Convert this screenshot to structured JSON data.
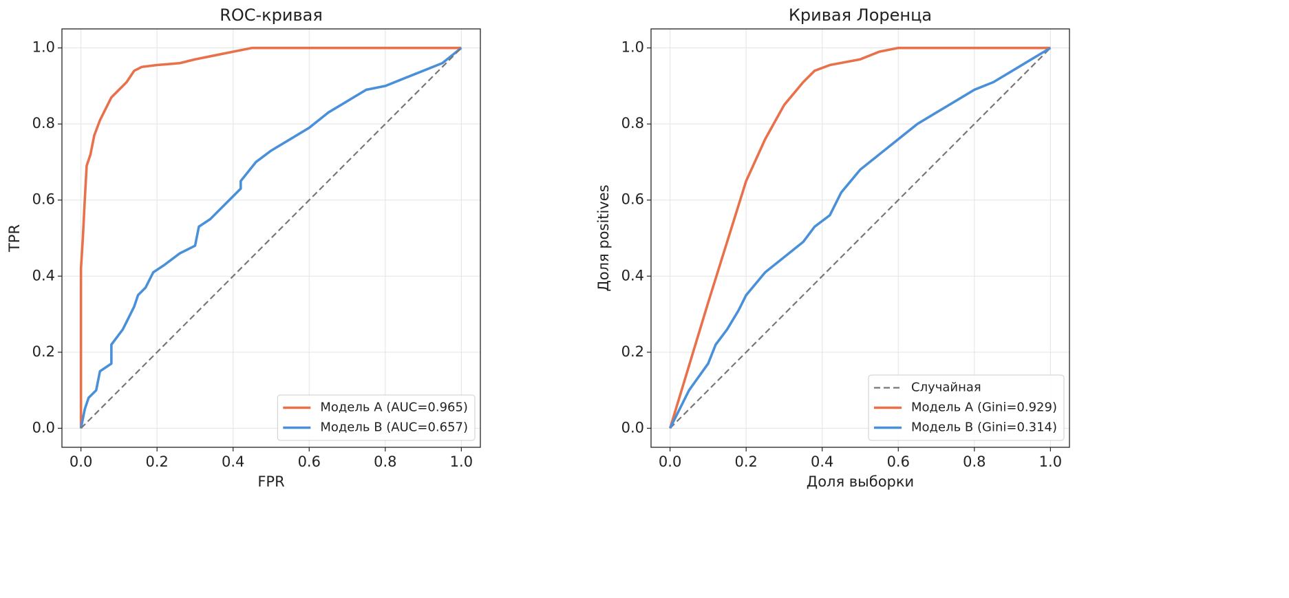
{
  "chart_data": [
    {
      "type": "line",
      "title": "ROC-кривая",
      "xlabel": "FPR",
      "ylabel": "TPR",
      "xlim": [
        -0.05,
        1.05
      ],
      "ylim": [
        -0.05,
        1.05
      ],
      "xticks": [
        {
          "value": 0,
          "label": "0.0"
        },
        0.2,
        0.4,
        0.6,
        0.8,
        {
          "value": 1,
          "label": "1.0"
        }
      ],
      "yticks": [
        {
          "value": 0,
          "label": "0.0"
        },
        0.2,
        0.4,
        0.6,
        0.8,
        {
          "value": 1,
          "label": "1.0"
        }
      ],
      "grid": true,
      "legend": "lower right",
      "series": [
        {
          "name": "Модель A (AUC=0.965)",
          "color": "#e8704a",
          "x": [
            0,
            0,
            0.005,
            0.01,
            0.015,
            0.025,
            0.035,
            0.05,
            0.06,
            0.08,
            0.1,
            0.12,
            0.14,
            0.16,
            0.2,
            0.26,
            0.3,
            0.35,
            0.4,
            0.45,
            1
          ],
          "values": [
            0,
            0.42,
            0.5,
            0.6,
            0.69,
            0.72,
            0.77,
            0.81,
            0.83,
            0.87,
            0.89,
            0.91,
            0.94,
            0.95,
            0.955,
            0.96,
            0.97,
            0.98,
            0.99,
            1,
            1
          ]
        },
        {
          "name": "Модель B (AUC=0.657)",
          "color": "#4a90d9",
          "x": [
            0,
            0.01,
            0.02,
            0.04,
            0.05,
            0.08,
            0.08,
            0.11,
            0.14,
            0.15,
            0.17,
            0.19,
            0.22,
            0.26,
            0.3,
            0.31,
            0.34,
            0.37,
            0.4,
            0.42,
            0.42,
            0.46,
            0.5,
            0.55,
            0.6,
            0.65,
            0.7,
            0.75,
            0.8,
            0.85,
            0.9,
            0.95,
            1
          ],
          "values": [
            0,
            0.05,
            0.08,
            0.1,
            0.15,
            0.17,
            0.22,
            0.26,
            0.32,
            0.35,
            0.37,
            0.41,
            0.43,
            0.46,
            0.48,
            0.53,
            0.55,
            0.58,
            0.61,
            0.63,
            0.65,
            0.7,
            0.73,
            0.76,
            0.79,
            0.83,
            0.86,
            0.89,
            0.9,
            0.92,
            0.94,
            0.96,
            1
          ]
        },
        {
          "color": "#777777",
          "dashed": true,
          "x": [
            0,
            1
          ],
          "values": [
            0,
            1
          ]
        }
      ]
    },
    {
      "type": "line",
      "title": "Кривая Лоренца",
      "xlabel": "Доля выборки",
      "ylabel": "Доля positives",
      "xlim": [
        -0.05,
        1.05
      ],
      "ylim": [
        -0.05,
        1.05
      ],
      "xticks": [
        {
          "value": 0,
          "label": "0.0"
        },
        0.2,
        0.4,
        0.6,
        0.8,
        {
          "value": 1,
          "label": "1.0"
        }
      ],
      "yticks": [
        {
          "value": 0,
          "label": "0.0"
        },
        0.2,
        0.4,
        0.6,
        0.8,
        {
          "value": 1,
          "label": "1.0"
        }
      ],
      "grid": true,
      "legend": "lower right",
      "series": [
        {
          "name": "Случайная",
          "color": "#777777",
          "dashed": true,
          "x": [
            0,
            1
          ],
          "values": [
            0,
            1
          ]
        },
        {
          "name": "Модель A (Gini=0.929)",
          "color": "#e8704a",
          "x": [
            0,
            0.1,
            0.2,
            0.25,
            0.3,
            0.35,
            0.38,
            0.42,
            0.5,
            0.55,
            0.6,
            1
          ],
          "values": [
            0,
            0.33,
            0.65,
            0.76,
            0.85,
            0.91,
            0.94,
            0.955,
            0.97,
            0.99,
            1,
            1
          ]
        },
        {
          "name": "Модель B (Gini=0.314)",
          "color": "#4a90d9",
          "x": [
            0,
            0.05,
            0.1,
            0.12,
            0.15,
            0.18,
            0.2,
            0.25,
            0.3,
            0.35,
            0.38,
            0.42,
            0.45,
            0.5,
            0.55,
            0.6,
            0.65,
            0.7,
            0.75,
            0.8,
            0.85,
            0.9,
            0.95,
            1
          ],
          "values": [
            0,
            0.1,
            0.17,
            0.22,
            0.26,
            0.31,
            0.35,
            0.41,
            0.45,
            0.49,
            0.53,
            0.56,
            0.62,
            0.68,
            0.72,
            0.76,
            0.8,
            0.83,
            0.86,
            0.89,
            0.91,
            0.94,
            0.97,
            1
          ]
        }
      ]
    }
  ]
}
